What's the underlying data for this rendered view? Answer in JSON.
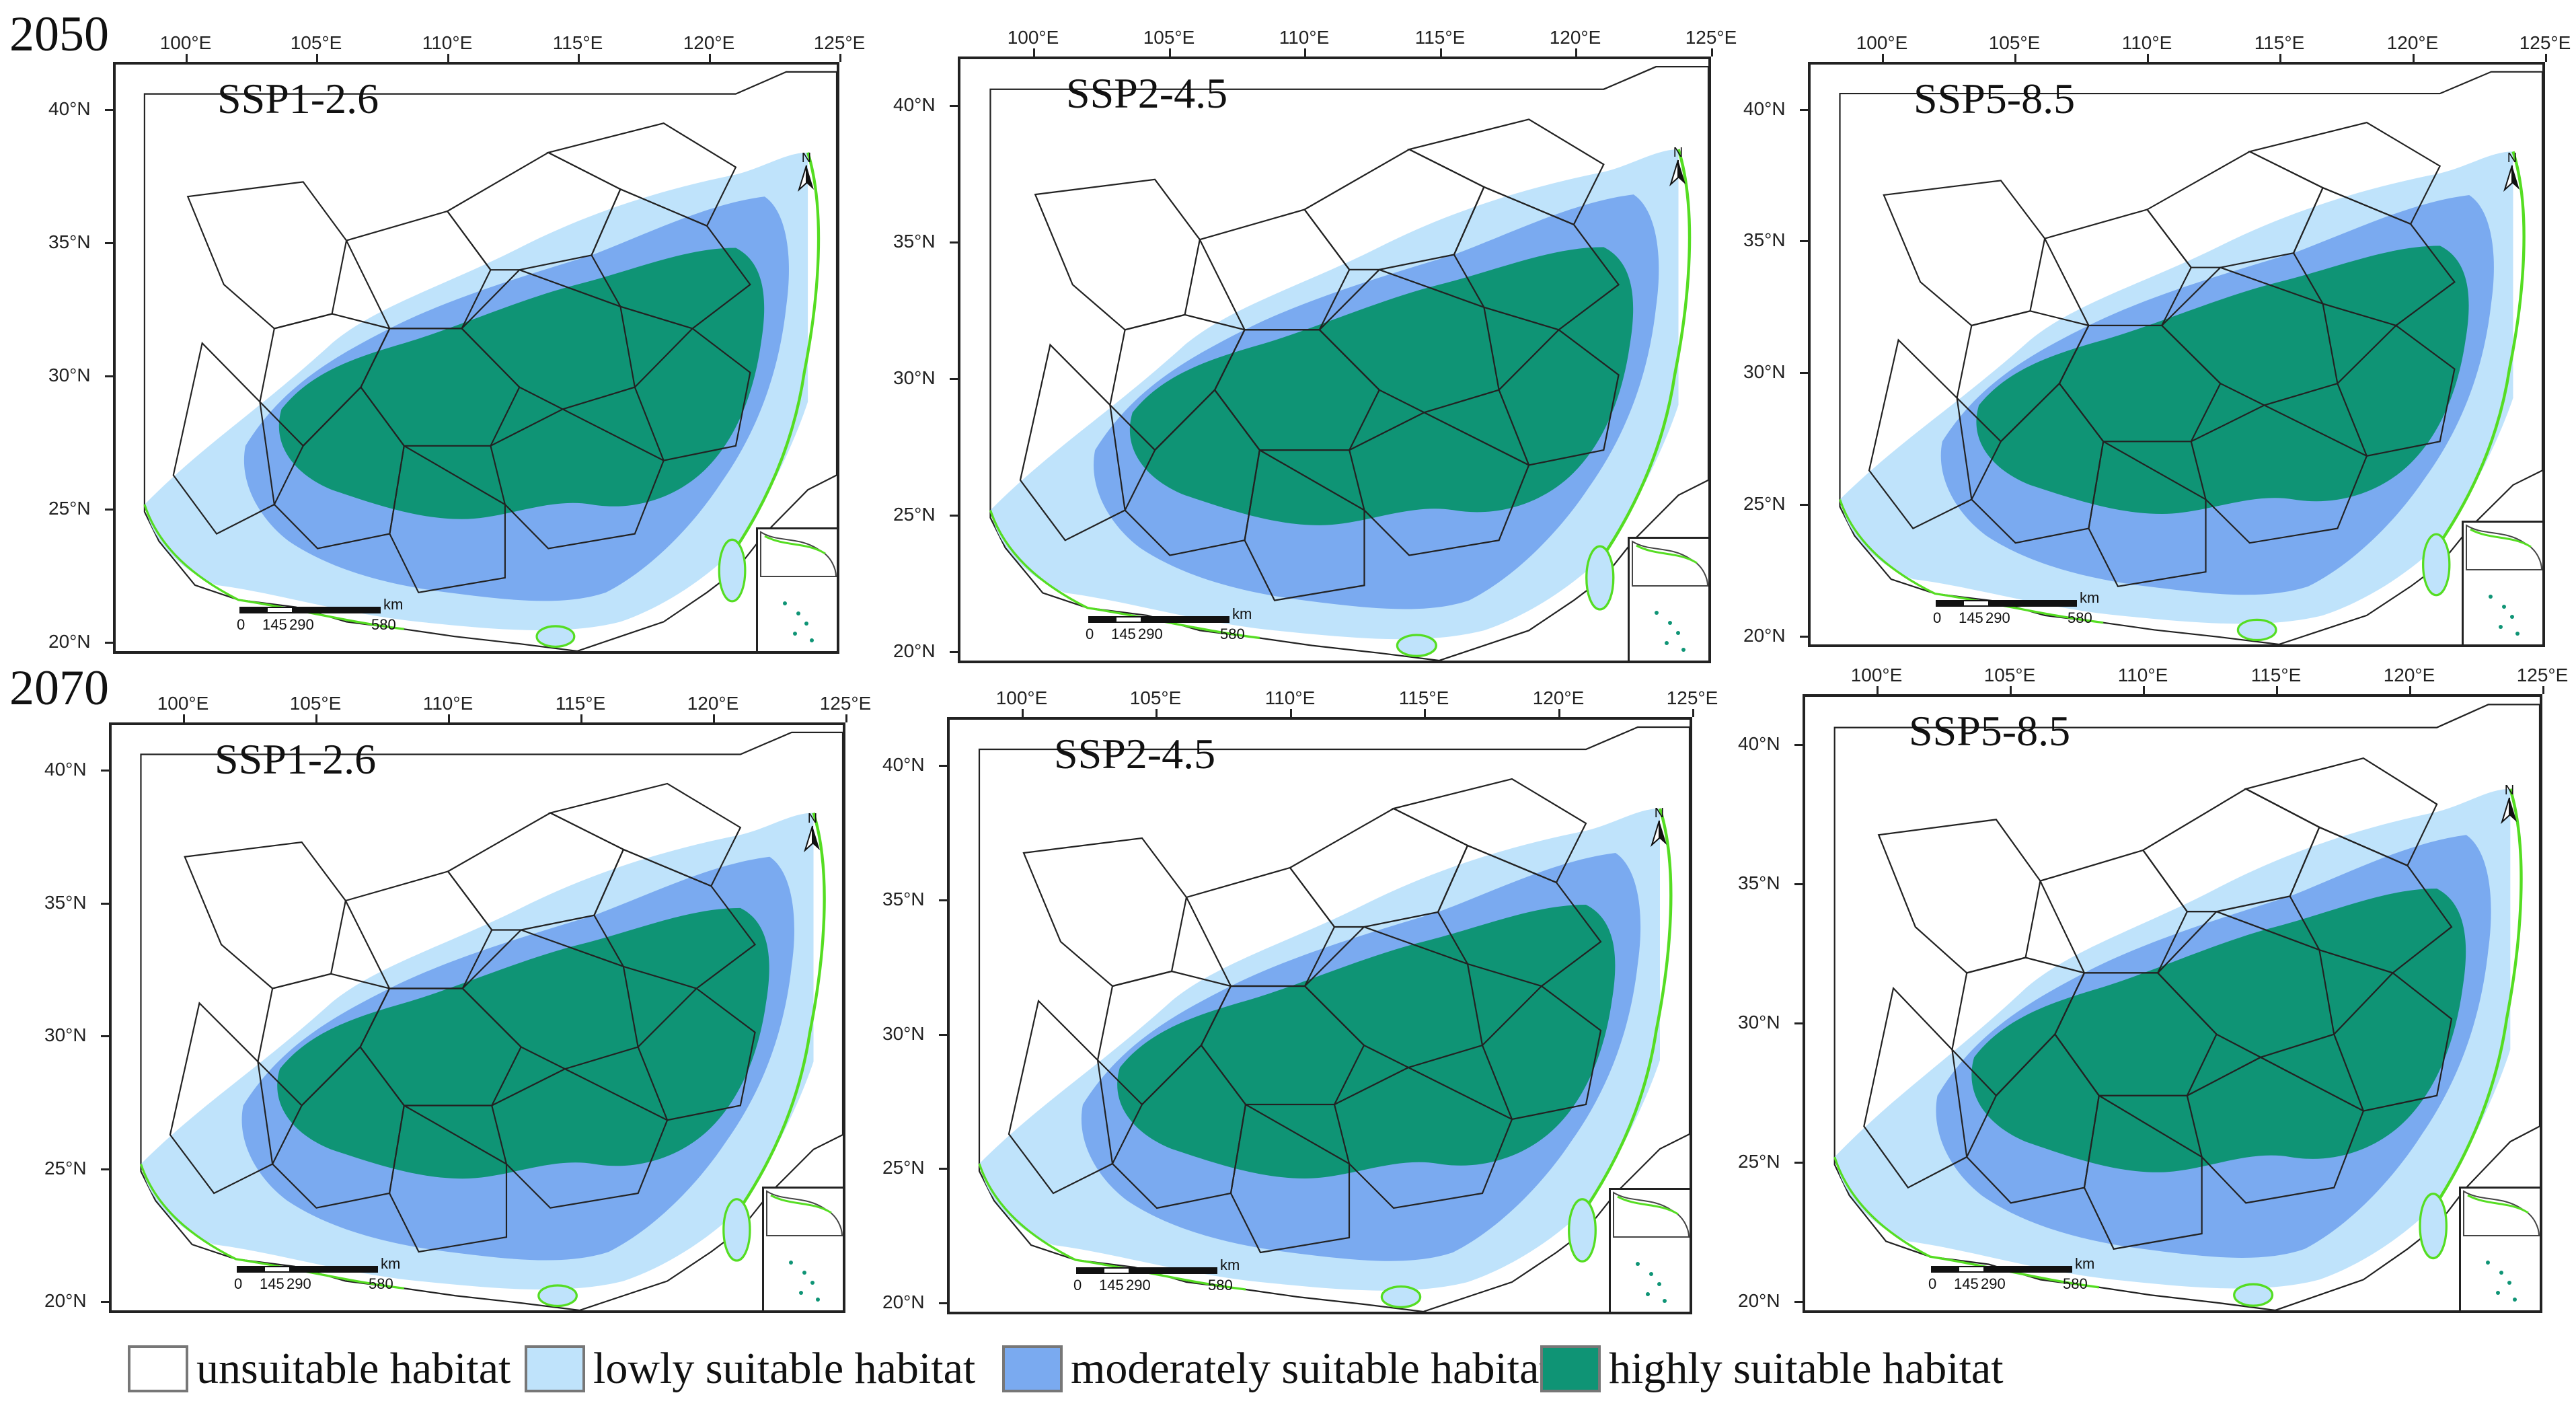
{
  "years": [
    "2050",
    "2070"
  ],
  "lon_labels": [
    "100°E",
    "105°E",
    "110°E",
    "115°E",
    "120°E",
    "125°E"
  ],
  "lat_labels": [
    "40°N",
    "35°N",
    "30°N",
    "25°N",
    "20°N"
  ],
  "scale": {
    "unit": "km",
    "ticks": [
      "0",
      "145",
      "290",
      "580"
    ]
  },
  "north_label": "N",
  "panels": [
    {
      "year": "2050",
      "scenario": "SSP1-2.6"
    },
    {
      "year": "2050",
      "scenario": "SSP2-4.5"
    },
    {
      "year": "2050",
      "scenario": "SSP5-8.5"
    },
    {
      "year": "2070",
      "scenario": "SSP1-2.6"
    },
    {
      "year": "2070",
      "scenario": "SSP2-4.5"
    },
    {
      "year": "2070",
      "scenario": "SSP5-8.5"
    }
  ],
  "legend": [
    {
      "label": "unsuitable habitat",
      "color": "#ffffff"
    },
    {
      "label": "lowly suitable habitat",
      "color": "#bfe3fb"
    },
    {
      "label": "moderately suitable habitat",
      "color": "#7aaaf0"
    },
    {
      "label": "highly suitable habitat",
      "color": "#0f9475"
    }
  ],
  "colors": {
    "border_line": "#222222",
    "coastline": "#55dd22"
  }
}
